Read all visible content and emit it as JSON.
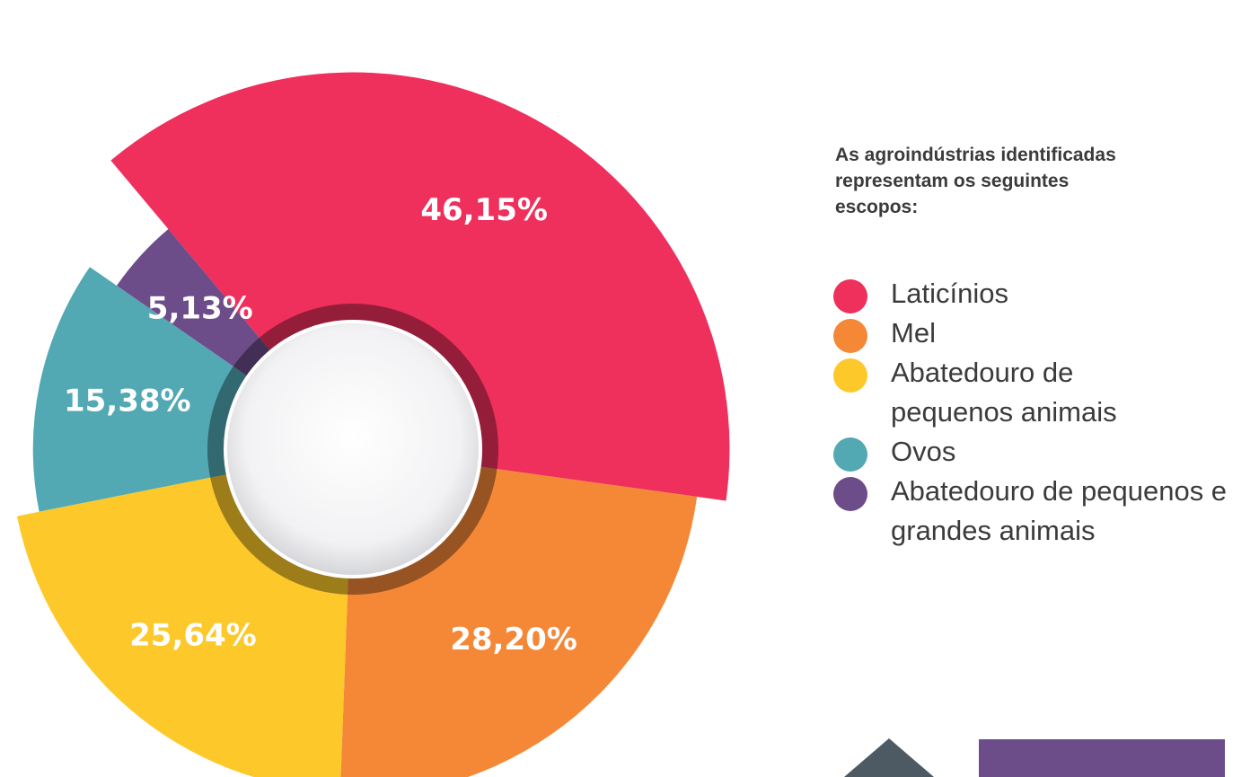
{
  "chart_data": {
    "type": "pie",
    "title": "As agroindústrias identificadas representam os seguintes escopos:",
    "categories": [
      "Laticínios",
      "Mel",
      "Abatedouro de pequenos animais",
      "Ovos",
      "Abatedouro de pequenos e grandes animais"
    ],
    "values": [
      46.15,
      28.2,
      25.64,
      15.38,
      5.13
    ],
    "value_labels": [
      "46,15%",
      "28,20%",
      "25,64%",
      "15,38%",
      "5,13%"
    ],
    "colors": [
      "#ef2f5c",
      "#f48837",
      "#fdc82a",
      "#52a9b3",
      "#6d4c8a"
    ]
  }
}
